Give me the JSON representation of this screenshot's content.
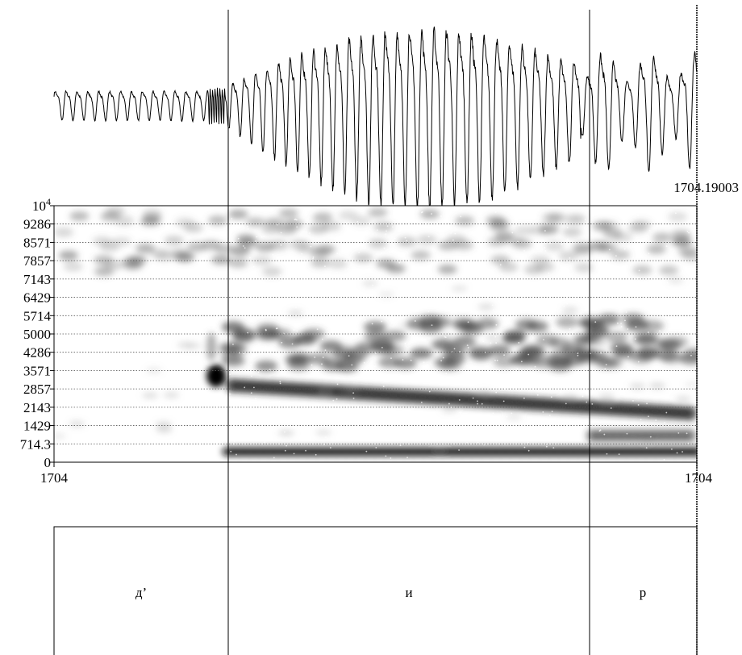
{
  "spectrogram": {
    "yticks": [
      {
        "value": 10000,
        "label": "10",
        "exponent": "4"
      },
      9286,
      8571,
      7857,
      7143,
      6429,
      5714,
      5000,
      4286,
      3571,
      2857,
      2143,
      1429,
      714.3,
      0
    ],
    "ylim": [
      0,
      10000
    ]
  },
  "time": {
    "start": 1704,
    "end": 1704,
    "cursor": 1704.19003
  },
  "tier": {
    "segments": [
      "д’",
      "и",
      "р"
    ]
  }
}
